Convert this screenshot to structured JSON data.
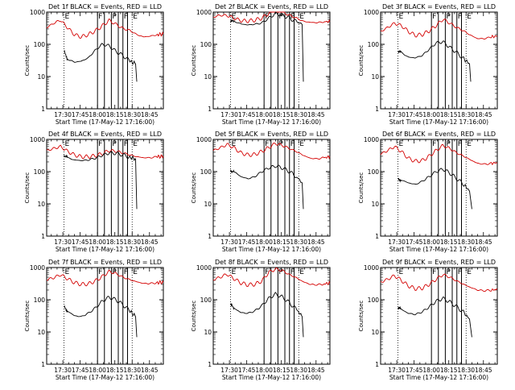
{
  "chart_data": [
    {
      "type": "line",
      "title": "Det 1f BLACK = Events, RED = LLD",
      "xlabel": "Start Time (17-May-12 17:16:00)",
      "ylabel": "Counts/sec",
      "yscale": "log",
      "ylim": [
        1,
        1000
      ],
      "xlim": [
        "17:16",
        "18:57"
      ],
      "x_ticks": [
        "17:30",
        "17:45",
        "18:00",
        "18:15",
        "18:30",
        "18:45"
      ],
      "y_ticks": [
        "1",
        "10",
        "100",
        "1000"
      ],
      "dotted_lines": [
        "17:31",
        "18:30"
      ],
      "solid_lines": [
        "18:00",
        "18:06",
        "18:12",
        "18:18",
        "18:22",
        "18:26"
      ],
      "letters": [
        "E",
        "F",
        "P",
        "F",
        "E"
      ],
      "series": [
        {
          "color": "#d40000",
          "x": [
            "17:16",
            "17:22",
            "17:28",
            "17:34",
            "17:40",
            "17:46",
            "17:52",
            "17:58",
            "18:04",
            "18:10",
            "18:16",
            "18:22",
            "18:28",
            "18:34",
            "18:40",
            "18:46",
            "18:52",
            "18:57"
          ],
          "values": [
            330,
            450,
            560,
            330,
            200,
            170,
            200,
            260,
            370,
            550,
            420,
            310,
            270,
            200,
            170,
            180,
            200,
            210
          ]
        },
        {
          "color": "#000000",
          "x": [
            "17:31",
            "17:34",
            "17:40",
            "17:46",
            "17:52",
            "17:58",
            "18:04",
            "18:10",
            "18:16",
            "18:22",
            "18:28",
            "18:33"
          ],
          "values": [
            60,
            35,
            28,
            30,
            38,
            65,
            100,
            90,
            60,
            45,
            30,
            25
          ],
          "drop": "18:34"
        }
      ]
    },
    {
      "type": "line",
      "title": "Det 2f BLACK = Events, RED = LLD",
      "xlabel": "Start Time (17-May-12 17:16:00)",
      "ylabel": "Counts/sec",
      "yscale": "log",
      "ylim": [
        1,
        1000
      ],
      "xlim": [
        "17:16",
        "18:57"
      ],
      "x_ticks": [
        "17:30",
        "17:45",
        "18:00",
        "18:15",
        "18:30",
        "18:45"
      ],
      "y_ticks": [
        "1",
        "10",
        "100",
        "1000"
      ],
      "dotted_lines": [
        "17:31",
        "18:30"
      ],
      "solid_lines": [
        "18:00",
        "18:06",
        "18:12",
        "18:18",
        "18:22",
        "18:26"
      ],
      "letters": [
        "E",
        "F",
        "P",
        "F",
        "E"
      ],
      "series": [
        {
          "color": "#d40000",
          "x": [
            "17:16",
            "17:22",
            "17:28",
            "17:34",
            "17:40",
            "17:46",
            "17:52",
            "17:58",
            "18:04",
            "18:10",
            "18:16",
            "18:22",
            "18:28",
            "18:34",
            "18:40",
            "18:46",
            "18:52",
            "18:57"
          ],
          "values": [
            700,
            800,
            780,
            650,
            540,
            530,
            560,
            650,
            900,
            1400,
            1000,
            800,
            650,
            520,
            480,
            470,
            500,
            510
          ]
        },
        {
          "color": "#000000",
          "x": [
            "17:31",
            "17:34",
            "17:40",
            "17:46",
            "17:52",
            "17:58",
            "18:04",
            "18:10",
            "18:16",
            "18:22",
            "18:28",
            "18:33"
          ],
          "values": [
            500,
            520,
            430,
            400,
            420,
            460,
            650,
            900,
            800,
            650,
            500,
            420
          ],
          "drop": "18:34"
        }
      ]
    },
    {
      "type": "line",
      "title": "Det 3f BLACK = Events, RED = LLD",
      "xlabel": "Start Time (17-May-12 17:16:00)",
      "ylabel": "Counts/sec",
      "yscale": "log",
      "ylim": [
        1,
        1000
      ],
      "xlim": [
        "17:16",
        "18:57"
      ],
      "x_ticks": [
        "17:30",
        "17:45",
        "18:00",
        "18:15",
        "18:30",
        "18:45"
      ],
      "y_ticks": [
        "1",
        "10",
        "100",
        "1000"
      ],
      "dotted_lines": [
        "17:31",
        "18:30"
      ],
      "solid_lines": [
        "18:00",
        "18:06",
        "18:12",
        "18:18",
        "18:22",
        "18:26"
      ],
      "letters": [
        "E",
        "F",
        "P",
        "F",
        "E"
      ],
      "series": [
        {
          "color": "#d40000",
          "x": [
            "17:16",
            "17:22",
            "17:28",
            "17:34",
            "17:40",
            "17:46",
            "17:52",
            "17:58",
            "18:04",
            "18:10",
            "18:16",
            "18:22",
            "18:28",
            "18:34",
            "18:40",
            "18:46",
            "18:52",
            "18:57"
          ],
          "values": [
            250,
            330,
            450,
            380,
            250,
            190,
            200,
            260,
            380,
            600,
            450,
            330,
            260,
            190,
            150,
            150,
            170,
            180
          ]
        },
        {
          "color": "#000000",
          "x": [
            "17:31",
            "17:34",
            "17:40",
            "17:46",
            "17:52",
            "17:58",
            "18:04",
            "18:10",
            "18:16",
            "18:22",
            "18:28",
            "18:33"
          ],
          "values": [
            60,
            55,
            40,
            38,
            45,
            70,
            110,
            120,
            80,
            55,
            35,
            25
          ],
          "drop": "18:34"
        }
      ]
    },
    {
      "type": "line",
      "title": "Det 4f BLACK = Events, RED = LLD",
      "xlabel": "Start Time (17-May-12 17:16:00)",
      "ylabel": "Counts/sec",
      "yscale": "log",
      "ylim": [
        1,
        1000
      ],
      "xlim": [
        "17:16",
        "18:57"
      ],
      "x_ticks": [
        "17:30",
        "17:45",
        "18:00",
        "18:15",
        "18:30",
        "18:45"
      ],
      "y_ticks": [
        "1",
        "10",
        "100",
        "1000"
      ],
      "dotted_lines": [
        "17:31",
        "18:30"
      ],
      "solid_lines": [
        "18:00",
        "18:06",
        "18:12",
        "18:18",
        "18:22",
        "18:26"
      ],
      "letters": [
        "E",
        "F",
        "P",
        "F",
        "E"
      ],
      "series": [
        {
          "color": "#d40000",
          "x": [
            "17:16",
            "17:22",
            "17:28",
            "17:34",
            "17:40",
            "17:46",
            "17:52",
            "17:58",
            "18:04",
            "18:10",
            "18:16",
            "18:22",
            "18:28",
            "18:34",
            "18:40",
            "18:46",
            "18:52",
            "18:57"
          ],
          "values": [
            450,
            520,
            600,
            430,
            330,
            290,
            290,
            310,
            360,
            450,
            430,
            380,
            330,
            290,
            270,
            270,
            290,
            300
          ]
        },
        {
          "color": "#000000",
          "x": [
            "17:31",
            "17:34",
            "17:40",
            "17:46",
            "17:52",
            "17:58",
            "18:04",
            "18:10",
            "18:16",
            "18:22",
            "18:28",
            "18:33"
          ],
          "values": [
            330,
            270,
            230,
            220,
            230,
            260,
            320,
            380,
            370,
            330,
            280,
            250
          ],
          "drop": "18:34"
        }
      ]
    },
    {
      "type": "line",
      "title": "Det 5f BLACK = Events, RED = LLD",
      "xlabel": "Start Time (17-May-12 17:16:00)",
      "ylabel": "Counts/sec",
      "yscale": "log",
      "ylim": [
        1,
        1000
      ],
      "xlim": [
        "17:16",
        "18:57"
      ],
      "x_ticks": [
        "17:30",
        "17:45",
        "18:00",
        "18:15",
        "18:30",
        "18:45"
      ],
      "y_ticks": [
        "1",
        "10",
        "100",
        "1000"
      ],
      "dotted_lines": [
        "17:31",
        "18:30"
      ],
      "solid_lines": [
        "18:00",
        "18:06",
        "18:12",
        "18:18",
        "18:22",
        "18:26"
      ],
      "letters": [
        "E",
        "F",
        "P",
        "F",
        "E"
      ],
      "series": [
        {
          "color": "#d40000",
          "x": [
            "17:16",
            "17:22",
            "17:28",
            "17:34",
            "17:40",
            "17:46",
            "17:52",
            "17:58",
            "18:04",
            "18:10",
            "18:16",
            "18:22",
            "18:28",
            "18:34",
            "18:40",
            "18:46",
            "18:52",
            "18:57"
          ],
          "values": [
            450,
            550,
            700,
            550,
            380,
            330,
            340,
            420,
            560,
            750,
            650,
            520,
            420,
            320,
            260,
            250,
            270,
            290
          ]
        },
        {
          "color": "#000000",
          "x": [
            "17:31",
            "17:34",
            "17:40",
            "17:46",
            "17:52",
            "17:58",
            "18:04",
            "18:10",
            "18:16",
            "18:22",
            "18:28",
            "18:33"
          ],
          "values": [
            110,
            100,
            70,
            60,
            70,
            100,
            130,
            150,
            130,
            100,
            70,
            45
          ],
          "drop": "18:34"
        }
      ]
    },
    {
      "type": "line",
      "title": "Det 6f BLACK = Events, RED = LLD",
      "xlabel": "Start Time (17-May-12 17:16:00)",
      "ylabel": "Counts/sec",
      "yscale": "log",
      "ylim": [
        1,
        1000
      ],
      "xlim": [
        "17:16",
        "18:57"
      ],
      "x_ticks": [
        "17:30",
        "17:45",
        "18:00",
        "18:15",
        "18:30",
        "18:45"
      ],
      "y_ticks": [
        "1",
        "10",
        "100",
        "1000"
      ],
      "dotted_lines": [
        "17:31",
        "18:30"
      ],
      "solid_lines": [
        "18:00",
        "18:06",
        "18:12",
        "18:18",
        "18:22",
        "18:26"
      ],
      "letters": [
        "E",
        "F",
        "P",
        "F",
        "E"
      ],
      "series": [
        {
          "color": "#d40000",
          "x": [
            "17:16",
            "17:22",
            "17:28",
            "17:34",
            "17:40",
            "17:46",
            "17:52",
            "17:58",
            "18:04",
            "18:10",
            "18:16",
            "18:22",
            "18:28",
            "18:34",
            "18:40",
            "18:46",
            "18:52",
            "18:57"
          ],
          "values": [
            350,
            450,
            600,
            420,
            260,
            210,
            220,
            300,
            450,
            650,
            520,
            380,
            300,
            230,
            180,
            170,
            180,
            190
          ]
        },
        {
          "color": "#000000",
          "x": [
            "17:31",
            "17:34",
            "17:40",
            "17:46",
            "17:52",
            "17:58",
            "18:04",
            "18:10",
            "18:16",
            "18:22",
            "18:28",
            "18:33"
          ],
          "values": [
            60,
            55,
            45,
            40,
            50,
            70,
            100,
            120,
            90,
            60,
            40,
            25
          ],
          "drop": "18:35"
        }
      ]
    },
    {
      "type": "line",
      "title": "Det 7f BLACK = Events, RED = LLD",
      "xlabel": "Start Time (17-May-12 17:16:00)",
      "ylabel": "Counts/sec",
      "yscale": "log",
      "ylim": [
        1,
        1000
      ],
      "xlim": [
        "17:16",
        "18:57"
      ],
      "x_ticks": [
        "17:30",
        "17:45",
        "18:00",
        "18:15",
        "18:30",
        "18:45"
      ],
      "y_ticks": [
        "1",
        "10",
        "100",
        "1000"
      ],
      "dotted_lines": [
        "17:31",
        "18:30"
      ],
      "solid_lines": [
        "18:00",
        "18:06",
        "18:12",
        "18:18",
        "18:22",
        "18:26"
      ],
      "letters": [
        "E",
        "F",
        "P",
        "F",
        "E"
      ],
      "series": [
        {
          "color": "#d40000",
          "x": [
            "17:16",
            "17:22",
            "17:28",
            "17:34",
            "17:40",
            "17:46",
            "17:52",
            "17:58",
            "18:04",
            "18:10",
            "18:16",
            "18:22",
            "18:28",
            "18:34",
            "18:40",
            "18:46",
            "18:52",
            "18:57"
          ],
          "values": [
            420,
            480,
            600,
            450,
            340,
            300,
            310,
            380,
            520,
            750,
            650,
            500,
            420,
            360,
            320,
            320,
            340,
            350
          ]
        },
        {
          "color": "#000000",
          "x": [
            "17:31",
            "17:34",
            "17:40",
            "17:46",
            "17:52",
            "17:58",
            "18:04",
            "18:10",
            "18:16",
            "18:22",
            "18:28",
            "18:33"
          ],
          "values": [
            60,
            45,
            32,
            30,
            38,
            55,
            90,
            120,
            100,
            70,
            45,
            30
          ],
          "drop": "18:34"
        }
      ]
    },
    {
      "type": "line",
      "title": "Det 8f BLACK = Events, RED = LLD",
      "xlabel": "Start Time (17-May-12 17:16:00)",
      "ylabel": "Counts/sec",
      "yscale": "log",
      "ylim": [
        1,
        1000
      ],
      "xlim": [
        "17:16",
        "18:57"
      ],
      "x_ticks": [
        "17:30",
        "17:45",
        "18:00",
        "18:15",
        "18:30",
        "18:45"
      ],
      "y_ticks": [
        "1",
        "10",
        "100",
        "1000"
      ],
      "dotted_lines": [
        "17:31",
        "18:30"
      ],
      "solid_lines": [
        "18:00",
        "18:06",
        "18:12",
        "18:18",
        "18:22",
        "18:26"
      ],
      "letters": [
        "E",
        "F",
        "P",
        "F",
        "E"
      ],
      "series": [
        {
          "color": "#d40000",
          "x": [
            "17:16",
            "17:22",
            "17:28",
            "17:34",
            "17:40",
            "17:46",
            "17:52",
            "17:58",
            "18:04",
            "18:10",
            "18:16",
            "18:22",
            "18:28",
            "18:34",
            "18:40",
            "18:46",
            "18:52",
            "18:57"
          ],
          "values": [
            420,
            500,
            620,
            450,
            330,
            290,
            300,
            380,
            700,
            900,
            800,
            600,
            480,
            360,
            300,
            290,
            310,
            330
          ]
        },
        {
          "color": "#000000",
          "x": [
            "17:31",
            "17:34",
            "17:40",
            "17:46",
            "17:52",
            "17:58",
            "18:04",
            "18:10",
            "18:16",
            "18:22",
            "18:28",
            "18:33"
          ],
          "values": [
            70,
            55,
            40,
            38,
            45,
            65,
            110,
            150,
            120,
            80,
            50,
            30
          ],
          "drop": "18:34"
        }
      ]
    },
    {
      "type": "line",
      "title": "Det 9f BLACK = Events, RED = LLD",
      "xlabel": "Start Time (17-May-12 17:16:00)",
      "ylabel": "Counts/sec",
      "yscale": "log",
      "ylim": [
        1,
        1000
      ],
      "xlim": [
        "17:16",
        "18:57"
      ],
      "x_ticks": [
        "17:30",
        "17:45",
        "18:00",
        "18:15",
        "18:30",
        "18:45"
      ],
      "y_ticks": [
        "1",
        "10",
        "100",
        "1000"
      ],
      "dotted_lines": [
        "17:31",
        "18:30"
      ],
      "solid_lines": [
        "18:00",
        "18:06",
        "18:12",
        "18:18",
        "18:22",
        "18:26"
      ],
      "letters": [
        "E",
        "F",
        "P",
        "F",
        "E"
      ],
      "series": [
        {
          "color": "#d40000",
          "x": [
            "17:16",
            "17:22",
            "17:28",
            "17:34",
            "17:40",
            "17:46",
            "17:52",
            "17:58",
            "18:04",
            "18:10",
            "18:16",
            "18:22",
            "18:28",
            "18:34",
            "18:40",
            "18:46",
            "18:52",
            "18:57"
          ],
          "values": [
            350,
            430,
            560,
            400,
            270,
            220,
            230,
            300,
            430,
            600,
            500,
            380,
            300,
            240,
            200,
            190,
            200,
            210
          ]
        },
        {
          "color": "#000000",
          "x": [
            "17:31",
            "17:34",
            "17:40",
            "17:46",
            "17:52",
            "17:58",
            "18:04",
            "18:10",
            "18:16",
            "18:22",
            "18:28",
            "18:33"
          ],
          "values": [
            55,
            50,
            38,
            35,
            42,
            60,
            90,
            110,
            85,
            60,
            40,
            25
          ],
          "drop": "18:35"
        }
      ]
    }
  ]
}
